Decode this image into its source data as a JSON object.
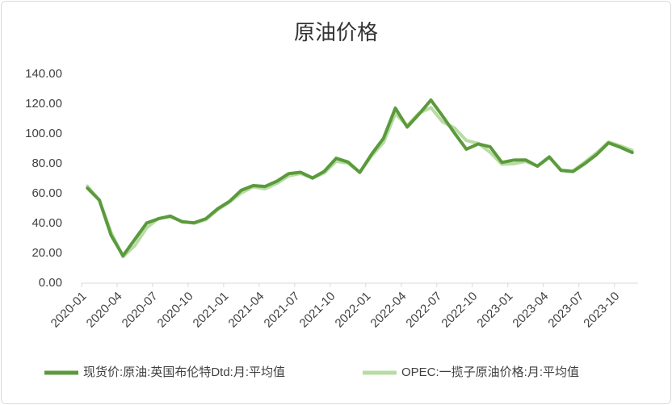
{
  "chart_data": {
    "type": "line",
    "title": "原油价格",
    "categories": [
      "2020-01",
      null,
      null,
      "2020-04",
      null,
      null,
      "2020-07",
      null,
      null,
      "2020-10",
      null,
      null,
      "2021-01",
      null,
      null,
      "2021-04",
      null,
      null,
      "2021-07",
      null,
      null,
      "2021-10",
      null,
      null,
      "2022-01",
      null,
      null,
      "2022-04",
      null,
      null,
      "2022-07",
      null,
      null,
      "2022-10",
      null,
      null,
      "2023-01",
      null,
      null,
      "2023-04",
      null,
      null,
      "2023-07",
      null,
      null,
      "2023-10",
      null
    ],
    "series": [
      {
        "name": "现货价:原油:英国布伦特Dtd:月:平均值",
        "color": "#5b9a3c",
        "values": [
          63.7,
          55.7,
          32.0,
          18.4,
          29.4,
          40.3,
          43.2,
          45.0,
          41.1,
          40.5,
          43.2,
          49.9,
          54.8,
          62.3,
          65.4,
          64.8,
          68.3,
          73.4,
          74.3,
          70.5,
          74.9,
          83.7,
          81.2,
          74.2,
          86.5,
          97.1,
          117.3,
          104.6,
          113.3,
          122.7,
          111.9,
          100.5,
          89.8,
          93.3,
          91.4,
          80.9,
          82.5,
          82.6,
          78.4,
          84.6,
          75.5,
          74.8,
          80.1,
          86.2,
          94.0,
          91.1,
          87.5
        ]
      },
      {
        "name": "OPEC:一揽子原油价格:月:平均值",
        "color": "#b8dca4",
        "values": [
          65.1,
          55.5,
          34.0,
          17.7,
          25.2,
          37.1,
          43.4,
          44.5,
          41.5,
          40.1,
          42.6,
          49.2,
          54.4,
          60.5,
          64.6,
          63.2,
          66.9,
          71.9,
          73.5,
          70.3,
          73.9,
          81.7,
          80.4,
          74.4,
          85.4,
          94.2,
          113.5,
          105.6,
          113.9,
          117.7,
          108.0,
          104.0,
          95.6,
          93.6,
          87.7,
          79.7,
          80.0,
          81.6,
          78.5,
          84.1,
          75.8,
          75.2,
          81.1,
          87.3,
          94.6,
          92.0,
          89.0
        ]
      }
    ],
    "ylim": [
      0,
      140
    ],
    "yticks": [
      {
        "value": 0,
        "label": "0.00"
      },
      {
        "value": 20,
        "label": "20.00"
      },
      {
        "value": 40,
        "label": "40.00"
      },
      {
        "value": 60,
        "label": "60.00"
      },
      {
        "value": 80,
        "label": "80.00"
      },
      {
        "value": 100,
        "label": "100.00"
      },
      {
        "value": 120,
        "label": "120.00"
      },
      {
        "value": 140,
        "label": "140.00"
      }
    ],
    "grid": false,
    "legend": "bottom"
  }
}
